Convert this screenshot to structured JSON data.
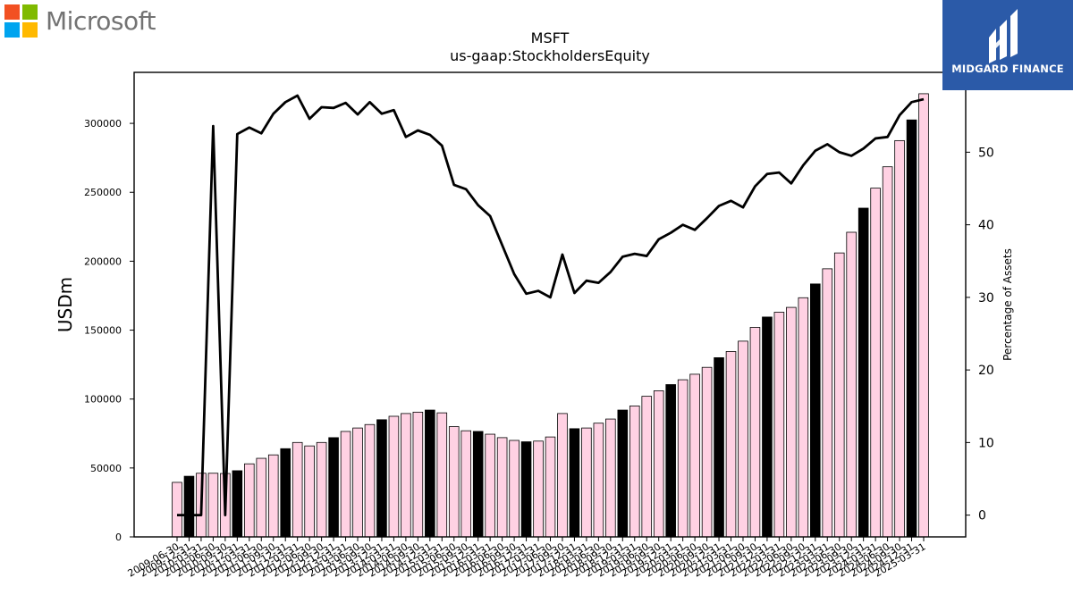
{
  "brand": {
    "name": "Microsoft",
    "colors": [
      "#f25022",
      "#7fba00",
      "#00a4ef",
      "#ffb900"
    ]
  },
  "publisher": {
    "name": "MIDGARD FINANCE",
    "bg_color": "#2b5aa8",
    "icon": "midgard-logo-icon"
  },
  "chart_data": {
    "type": "bar",
    "title": "MSFT",
    "subtitle": "us-gaap:StockholdersEquity",
    "ylabel": "USDm",
    "y2label": "Percentage of Assets",
    "ylim": [
      0,
      337000
    ],
    "y2lim": [
      -3,
      61
    ],
    "yticks": [
      0,
      50000,
      100000,
      150000,
      200000,
      250000,
      300000
    ],
    "y2ticks": [
      0,
      10,
      20,
      30,
      40,
      50
    ],
    "grid": false,
    "legend": "none",
    "bar_color_default": "#ffd1e3",
    "bar_color_highlight": "#000000",
    "categories": [
      "2009-06-30",
      "2009-12-31",
      "2010-03-31",
      "2010-06-30",
      "2010-09-30",
      "2010-12-31",
      "2011-03-31",
      "2011-06-30",
      "2011-09-30",
      "2011-12-31",
      "2012-03-31",
      "2012-06-30",
      "2012-09-30",
      "2012-12-31",
      "2013-03-31",
      "2013-06-30",
      "2013-09-30",
      "2013-12-31",
      "2014-03-31",
      "2014-06-30",
      "2014-09-30",
      "2014-12-31",
      "2015-03-31",
      "2015-06-30",
      "2015-09-30",
      "2015-12-31",
      "2016-03-31",
      "2016-06-30",
      "2016-09-30",
      "2016-12-31",
      "2017-03-31",
      "2017-06-30",
      "2017-09-30",
      "2017-12-31",
      "2018-03-31",
      "2018-06-30",
      "2018-09-30",
      "2018-12-31",
      "2019-03-31",
      "2019-06-30",
      "2019-09-30",
      "2019-12-31",
      "2020-03-31",
      "2020-06-30",
      "2020-09-30",
      "2020-12-31",
      "2021-03-31",
      "2021-06-30",
      "2021-09-30",
      "2021-12-31",
      "2022-03-31",
      "2022-06-30",
      "2022-09-30",
      "2022-12-31",
      "2023-03-31",
      "2023-06-30",
      "2023-09-30",
      "2023-12-31",
      "2024-03-31",
      "2024-06-30",
      "2024-09-30",
      "2024-12-31",
      "2025-03-31"
    ],
    "tick_labels": [
      "2009-06-30",
      "2009-12-31",
      "2010-03-31",
      "2010-06-30",
      "2010-09-30",
      "2010-12-31",
      "2011-03-31",
      "2011-06-30",
      "2011-09-30",
      "2011-12-31",
      "2012-03-31",
      "2012-06-30",
      "2012-09-30",
      "2012-12-31",
      "2013-03-31",
      "2013-06-30",
      "2013-09-30",
      "2013-12-31",
      "2014-03-31",
      "2014-06-30",
      "2014-09-30",
      "2014-12-31",
      "2015-03-31",
      "2015-06-30",
      "2015-09-30",
      "2015-12-31",
      "2016-03-31",
      "2016-06-30",
      "2016-09-30",
      "2016-12-31",
      "2017-03-31",
      "2017-06-30",
      "2017-09-30",
      "2017-12-31",
      "2018-03-31",
      "2018-06-30",
      "2018-09-30",
      "2018-12-31",
      "2019-03-31",
      "2019-06-30",
      "2019-09-30",
      "2019-12-31",
      "2020-03-31",
      "2020-06-30",
      "2020-09-30",
      "2020-12-31",
      "2021-03-31",
      "2021-06-30",
      "2021-09-30",
      "2021-12-31",
      "2022-03-31",
      "2022-06-30",
      "2022-09-30",
      "2022-12-31",
      "2023-03-31",
      "2023-06-30",
      "2023-09-30",
      "2023-12-31",
      "2024-03-31",
      "2024-06-30",
      "2024-09-30",
      "2024-12-31",
      "2025-03-31"
    ],
    "series": [
      {
        "type": "bar",
        "axis": "left",
        "values": [
          39558,
          44000,
          46175,
          46175,
          46000,
          48000,
          53000,
          57000,
          59500,
          64000,
          68500,
          66000,
          68500,
          72000,
          76500,
          79000,
          81500,
          85000,
          87500,
          89500,
          90500,
          92000,
          90000,
          80000,
          77000,
          76500,
          74500,
          72000,
          70000,
          69000,
          69500,
          72500,
          89500,
          78500,
          79000,
          82500,
          85500,
          92000,
          95000,
          102000,
          106000,
          110500,
          114000,
          118000,
          123000,
          130000,
          134500,
          142000,
          152000,
          159500,
          163000,
          166500,
          173500,
          183500,
          194500,
          206000,
          221000,
          238500,
          253000,
          268500,
          287500,
          302500,
          321500
        ],
        "highlight": [
          false,
          true,
          false,
          false,
          false,
          true,
          false,
          false,
          false,
          true,
          false,
          false,
          false,
          true,
          false,
          false,
          false,
          true,
          false,
          false,
          false,
          true,
          false,
          false,
          false,
          true,
          false,
          false,
          false,
          true,
          false,
          false,
          false,
          true,
          false,
          false,
          false,
          true,
          false,
          false,
          false,
          true,
          false,
          false,
          false,
          true,
          false,
          false,
          false,
          true,
          false,
          false,
          false,
          true,
          false,
          false,
          false,
          true,
          false,
          false,
          false,
          true,
          false
        ]
      },
      {
        "type": "line",
        "axis": "right",
        "values": [
          0,
          0,
          0,
          53.6,
          0,
          52.5,
          53.4,
          52.6,
          55.3,
          56.9,
          57.8,
          54.6,
          56.2,
          56.1,
          56.8,
          55.2,
          56.9,
          55.3,
          55.8,
          52.1,
          53.0,
          52.4,
          50.9,
          45.5,
          44.9,
          42.7,
          41.2,
          37.2,
          33.2,
          30.5,
          30.9,
          30.0,
          35.9,
          30.6,
          32.3,
          32.0,
          33.5,
          35.6,
          36.0,
          35.7,
          38.0,
          38.9,
          40.0,
          39.3,
          40.9,
          42.6,
          43.3,
          42.4,
          45.3,
          47.0,
          47.2,
          45.7,
          48.2,
          50.2,
          51.1,
          50.0,
          49.5,
          50.5,
          51.9,
          52.1,
          55.1,
          56.9,
          57.3
        ]
      }
    ]
  }
}
